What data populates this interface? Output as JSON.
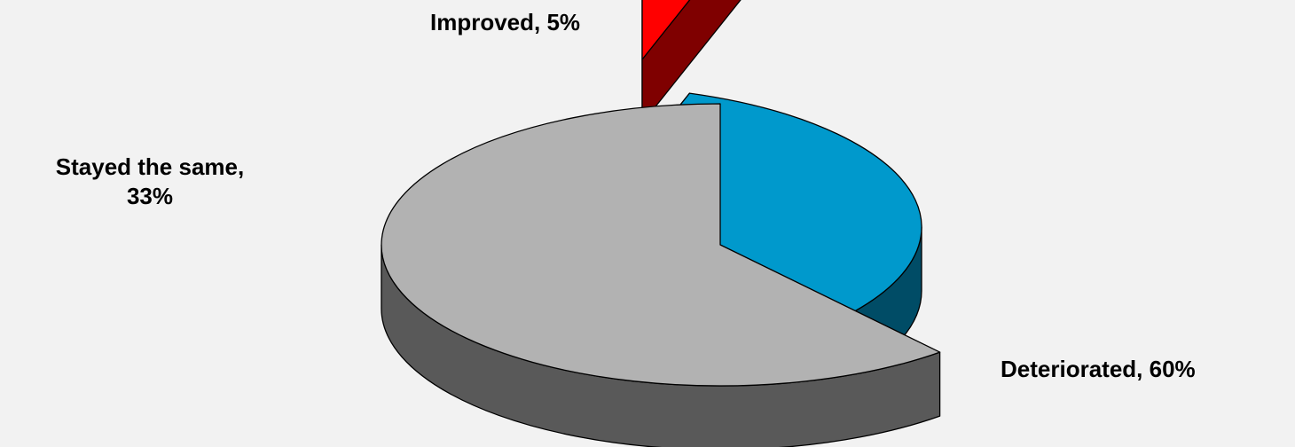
{
  "chart_data": {
    "type": "pie",
    "style": "3d-exploded",
    "slices": [
      {
        "name": "Improved",
        "value": 5,
        "label": "Improved, 5%",
        "top_color": "#ff0000",
        "side_color": "#7f0000"
      },
      {
        "name": "Stayed the same",
        "value": 33,
        "label": "Stayed the same, 33%",
        "label_line1": "Stayed the same,",
        "label_line2": "33%",
        "top_color": "#0099cc",
        "side_color": "#004c66"
      },
      {
        "name": "Deteriorated",
        "value": 60,
        "label": "Deteriorated, 60%",
        "top_color": "#b2b2b2",
        "side_color": "#595959"
      }
    ],
    "title": "",
    "legend": "none",
    "background": "#f2f2f2"
  }
}
